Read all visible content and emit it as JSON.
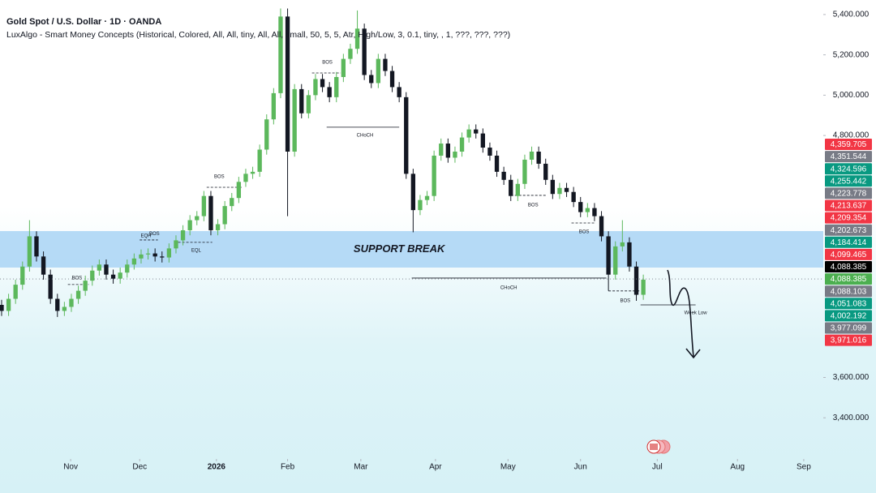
{
  "chart_data": {
    "type": "candlestick",
    "title": "Gold Spot / U.S. Dollar · 1D · OANDA",
    "subtitle": "LuxAlgo - Smart Money Concepts (Historical, Colored, All, All, tiny, All, All, small, 50, 5, 5, Atr, High/Low, 3, 0.1, tiny, , 1, ???, ???, ???)",
    "up_color": "#5cb85c",
    "down_color": "#131722",
    "open": [
      3960,
      3930,
      3990,
      4060,
      4150,
      4300,
      4200,
      4110,
      3990,
      3930,
      3950,
      3990,
      4030,
      4080,
      4130,
      4160,
      4110,
      4090,
      4120,
      4160,
      4190,
      4210,
      4215,
      4200,
      4195,
      4240,
      4280,
      4330,
      4380,
      4400,
      4500,
      4330,
      4360,
      4450,
      4490,
      4570,
      4610,
      4620,
      4730,
      4880,
      5010,
      5390,
      4720,
      5030,
      4910,
      5000,
      5080,
      5040,
      4990,
      5090,
      5180,
      5230,
      5330,
      5100,
      5060,
      5180,
      5120,
      5040,
      4990,
      4610,
      4430,
      4480,
      4500,
      4700,
      4760,
      4690,
      4720,
      4790,
      4830,
      4810,
      4740,
      4700,
      4620,
      4580,
      4500,
      4560,
      4680,
      4720,
      4660,
      4580,
      4510,
      4540,
      4520,
      4470,
      4420,
      4440,
      4400,
      4300,
      4110,
      4250,
      4270,
      4150,
      4010
    ],
    "high": [
      3985,
      4015,
      4085,
      4175,
      4380,
      4325,
      4225,
      4135,
      4015,
      3975,
      4015,
      4055,
      4105,
      4155,
      4185,
      4185,
      4135,
      4145,
      4185,
      4215,
      4235,
      4240,
      4240,
      4225,
      4265,
      4305,
      4355,
      4405,
      4425,
      4525,
      4525,
      4385,
      4475,
      4515,
      4595,
      4635,
      4645,
      4755,
      4905,
      5035,
      5430,
      5430,
      5055,
      5055,
      5025,
      5105,
      5105,
      5065,
      5115,
      5205,
      5255,
      5420,
      5355,
      5125,
      5205,
      5205,
      5145,
      5065,
      5015,
      4635,
      4505,
      4525,
      4725,
      4785,
      4785,
      4745,
      4815,
      4855,
      4855,
      4835,
      4765,
      4725,
      4645,
      4605,
      4585,
      4705,
      4745,
      4745,
      4685,
      4605,
      4565,
      4565,
      4545,
      4495,
      4465,
      4465,
      4425,
      4325,
      4275,
      4380,
      4295,
      4175,
      4110
    ],
    "low": [
      3905,
      3905,
      3965,
      4035,
      4125,
      4175,
      4085,
      3965,
      3900,
      3905,
      3925,
      3965,
      4005,
      4055,
      4105,
      4085,
      4065,
      4065,
      4095,
      4135,
      4165,
      4185,
      4175,
      4170,
      4170,
      4215,
      4255,
      4305,
      4355,
      4375,
      4305,
      4305,
      4335,
      4425,
      4465,
      4545,
      4585,
      4595,
      4705,
      4855,
      4985,
      4400,
      4695,
      4885,
      4885,
      4975,
      5015,
      4965,
      4965,
      5065,
      5155,
      5205,
      5075,
      5035,
      5035,
      5095,
      5015,
      4965,
      4585,
      4320,
      4405,
      4455,
      4475,
      4675,
      4665,
      4665,
      4695,
      4765,
      4785,
      4715,
      4675,
      4595,
      4555,
      4475,
      4475,
      4535,
      4655,
      4635,
      4555,
      4485,
      4485,
      4495,
      4445,
      4395,
      4395,
      4375,
      4275,
      4030,
      4085,
      4225,
      4125,
      3980,
      3985
    ],
    "close": [
      3930,
      3990,
      4060,
      4150,
      4300,
      4200,
      4110,
      3990,
      3930,
      3950,
      3990,
      4030,
      4080,
      4130,
      4160,
      4110,
      4090,
      4120,
      4160,
      4190,
      4210,
      4215,
      4200,
      4195,
      4240,
      4280,
      4330,
      4380,
      4400,
      4500,
      4330,
      4360,
      4450,
      4490,
      4570,
      4610,
      4620,
      4730,
      4880,
      5010,
      5390,
      4720,
      5030,
      4910,
      5000,
      5080,
      5040,
      4990,
      5090,
      5180,
      5230,
      5330,
      5100,
      5060,
      5180,
      5120,
      5040,
      4990,
      4610,
      4430,
      4480,
      4500,
      4700,
      4760,
      4690,
      4720,
      4790,
      4830,
      4810,
      4740,
      4700,
      4620,
      4580,
      4500,
      4560,
      4680,
      4720,
      4660,
      4580,
      4510,
      4540,
      4520,
      4470,
      4420,
      4440,
      4400,
      4300,
      4110,
      4250,
      4270,
      4150,
      4010,
      4085
    ],
    "xlim": [
      -0.23,
      117.8
    ],
    "xticks": [
      {
        "value": 9.9,
        "label": "Nov"
      },
      {
        "value": 19.8,
        "label": "Dec"
      },
      {
        "value": 30.8,
        "label": "2026",
        "bold": true
      },
      {
        "value": 41,
        "label": "Feb"
      },
      {
        "value": 51.5,
        "label": "Mar"
      },
      {
        "value": 62.2,
        "label": "Apr"
      },
      {
        "value": 72.6,
        "label": "May"
      },
      {
        "value": 83,
        "label": "Jun"
      },
      {
        "value": 94,
        "label": "Jul"
      },
      {
        "value": 105.5,
        "label": "Aug"
      },
      {
        "value": 115,
        "label": "Sep"
      }
    ],
    "ylim": [
      3220,
      5472
    ],
    "yticks": [
      {
        "value": 3400,
        "label": "3,400.000"
      },
      {
        "value": 3600,
        "label": "3,600.000"
      },
      {
        "value": 4800,
        "label": "4,800.000"
      },
      {
        "value": 5000,
        "label": "5,000.000"
      },
      {
        "value": 5200,
        "label": "5,200.000"
      },
      {
        "value": 5400,
        "label": "5,400.000"
      }
    ],
    "zone": {
      "label": "SUPPORT BREAK",
      "low": 4145,
      "high": 4326,
      "label_x": 57,
      "color": "#a9d3f5"
    },
    "price_tags": [
      {
        "value": 4359.705,
        "label": "4,359.705",
        "color": "#f23645"
      },
      {
        "value": 4351.544,
        "label": "4,351.544",
        "color": "#787b86"
      },
      {
        "value": 4324.596,
        "label": "4,324.596",
        "color": "#089981"
      },
      {
        "value": 4255.442,
        "label": "4,255.442",
        "color": "#089981"
      },
      {
        "value": 4223.778,
        "label": "4,223.778",
        "color": "#787b86"
      },
      {
        "value": 4213.637,
        "label": "4,213.637",
        "color": "#f23645"
      },
      {
        "value": 4209.354,
        "label": "4,209.354",
        "color": "#f23645"
      },
      {
        "value": 4202.673,
        "label": "4,202.673",
        "color": "#787b86"
      },
      {
        "value": 4184.414,
        "label": "4,184.414",
        "color": "#089981"
      },
      {
        "value": 4099.465,
        "label": "4,099.465",
        "color": "#f23645"
      },
      {
        "value": 4088.385,
        "label": "4,088.385",
        "color": "#000000",
        "current": true
      },
      {
        "value": 4088.385,
        "label": "4,088.385",
        "color": "#4caf50"
      },
      {
        "value": 4088.103,
        "label": "4,088.103",
        "color": "#787b86"
      },
      {
        "value": 4051.083,
        "label": "4,051.083",
        "color": "#089981"
      },
      {
        "value": 4002.192,
        "label": "4,002.192",
        "color": "#089981"
      },
      {
        "value": 3977.099,
        "label": "3,977.099",
        "color": "#787b86"
      },
      {
        "value": 3971.016,
        "label": "3,971.016",
        "color": "#f23645"
      }
    ],
    "annotations": [
      {
        "text": "BOS",
        "x": 10.8,
        "y": 4093
      },
      {
        "text": "EQL",
        "x": 27.9,
        "y": 4230
      },
      {
        "text": "EQH",
        "x": 20.7,
        "y": 4302
      },
      {
        "text": "BOS",
        "x": 21.9,
        "y": 4312
      },
      {
        "text": "BOS",
        "x": 31.2,
        "y": 4596
      },
      {
        "text": "BOS",
        "x": 46.7,
        "y": 5163
      },
      {
        "text": "CHoCH",
        "x": 52.1,
        "y": 4800
      },
      {
        "text": "CHoCH",
        "x": 72.7,
        "y": 4045
      },
      {
        "text": "BOS",
        "x": 76.2,
        "y": 4455
      },
      {
        "text": "BOS",
        "x": 83.5,
        "y": 4322
      },
      {
        "text": "BOS",
        "x": 89.4,
        "y": 3980
      },
      {
        "text": "Week Low",
        "x": 99.5,
        "y": 3920
      }
    ],
    "structure_lines": [
      {
        "x1": 9.5,
        "x2": 12.5,
        "y": 4061,
        "dashed": true
      },
      {
        "x1": 19.8,
        "x2": 22.4,
        "y": 4282,
        "dashed": true
      },
      {
        "x1": 25.3,
        "x2": 30.2,
        "y": 4270,
        "dashed": true
      },
      {
        "x1": 29.4,
        "x2": 34.4,
        "y": 4543,
        "dashed": true
      },
      {
        "x1": 44.5,
        "x2": 48.6,
        "y": 5110,
        "dashed": true
      },
      {
        "x1": 46.6,
        "x2": 57,
        "y": 4841,
        "dashed": false
      },
      {
        "x1": 58.8,
        "x2": 86.7,
        "y": 4093,
        "dashed": false
      },
      {
        "x1": 73,
        "x2": 78,
        "y": 4503,
        "dashed": true
      },
      {
        "x1": 81.7,
        "x2": 85.2,
        "y": 4366,
        "dashed": true
      },
      {
        "x1": 87,
        "x2": 91.6,
        "y": 4029,
        "dashed": true
      },
      {
        "x1": 91.6,
        "x2": 99.5,
        "y": 3960,
        "dashed": false
      }
    ]
  }
}
